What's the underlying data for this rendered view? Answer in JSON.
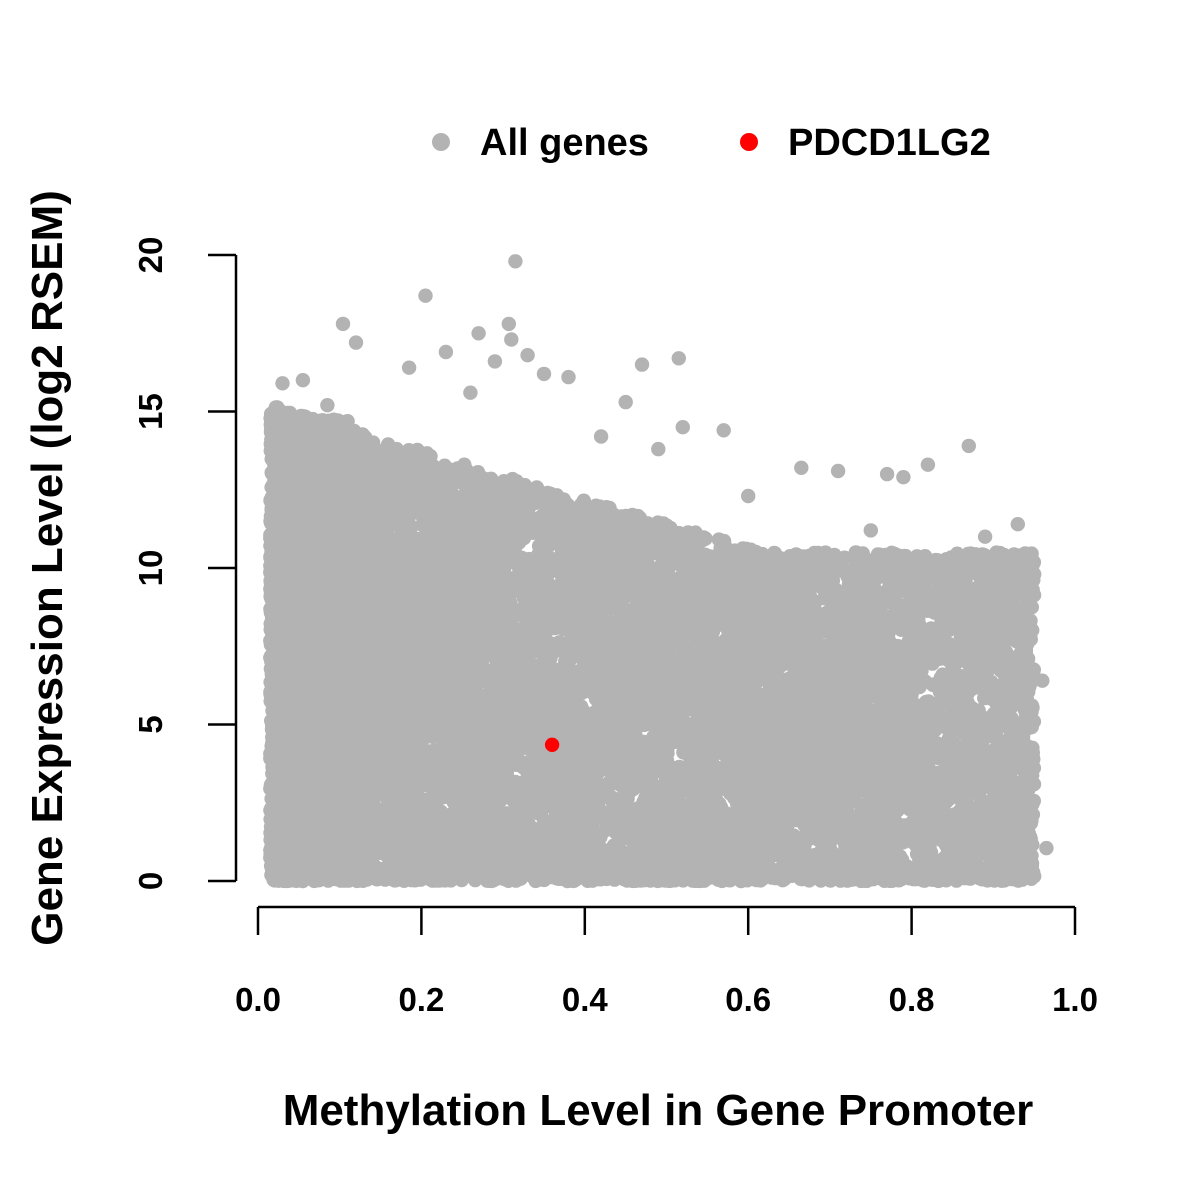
{
  "chart_data": {
    "type": "scatter",
    "title": "",
    "xlabel": "Methylation Level in Gene Promoter",
    "ylabel": "Gene Expression Level (log2 RSEM)",
    "xlim": [
      0.0,
      1.0
    ],
    "ylim": [
      0,
      20
    ],
    "x_ticks": [
      "0.0",
      "0.2",
      "0.4",
      "0.6",
      "0.8",
      "1.0"
    ],
    "x_tick_values": [
      0.0,
      0.2,
      0.4,
      0.6,
      0.8,
      1.0
    ],
    "y_ticks": [
      "0",
      "5",
      "10",
      "15",
      "20"
    ],
    "y_tick_values": [
      0,
      5,
      10,
      15,
      20
    ],
    "grid": false,
    "legend": {
      "placement": "top",
      "entries": [
        {
          "label": "All genes",
          "color": "#b3b3b3"
        },
        {
          "label": "PDCD1LG2",
          "color": "#ff0000"
        }
      ]
    },
    "series": [
      {
        "name": "All genes",
        "color": "#b3b3b3",
        "description_points": [
          [
            0.315,
            19.8
          ],
          [
            0.205,
            18.7
          ],
          [
            0.104,
            17.8
          ],
          [
            0.307,
            17.8
          ],
          [
            0.27,
            17.5
          ],
          [
            0.12,
            17.2
          ],
          [
            0.31,
            17.3
          ],
          [
            0.23,
            16.9
          ],
          [
            0.33,
            16.8
          ],
          [
            0.47,
            16.5
          ],
          [
            0.515,
            16.7
          ],
          [
            0.29,
            16.6
          ],
          [
            0.185,
            16.4
          ],
          [
            0.38,
            16.1
          ],
          [
            0.35,
            16.2
          ],
          [
            0.03,
            15.9
          ],
          [
            0.055,
            16.0
          ],
          [
            0.45,
            15.3
          ],
          [
            0.26,
            15.6
          ],
          [
            0.085,
            15.2
          ],
          [
            0.52,
            14.5
          ],
          [
            0.57,
            14.4
          ],
          [
            0.42,
            14.2
          ],
          [
            0.49,
            13.8
          ],
          [
            0.87,
            13.9
          ],
          [
            0.82,
            13.3
          ],
          [
            0.665,
            13.2
          ],
          [
            0.71,
            13.1
          ],
          [
            0.77,
            13.0
          ],
          [
            0.79,
            12.9
          ],
          [
            0.6,
            12.3
          ],
          [
            0.93,
            11.4
          ],
          [
            0.89,
            11.0
          ],
          [
            0.75,
            11.2
          ],
          [
            0.96,
            6.4
          ],
          [
            0.965,
            1.05
          ],
          [
            0.95,
            0.15
          ],
          [
            0.935,
            2.5
          ],
          [
            0.925,
            4.1
          ],
          [
            0.95,
            9.8
          ],
          [
            0.025,
            0.55
          ],
          [
            0.02,
            1.7
          ]
        ],
        "regions": [
          {
            "x": [
              0.015,
              0.38
            ],
            "y_max": [
              15.2,
              12.3
            ],
            "density": "very high"
          },
          {
            "x": [
              0.38,
              0.62
            ],
            "y_max": [
              12.3,
              10.5
            ],
            "density": "high"
          },
          {
            "x": [
              0.62,
              0.95
            ],
            "y_max": [
              10.5,
              10.5
            ],
            "density": "medium"
          }
        ]
      },
      {
        "name": "PDCD1LG2",
        "color": "#ff0000",
        "points": [
          [
            0.36,
            4.35
          ]
        ]
      }
    ]
  }
}
